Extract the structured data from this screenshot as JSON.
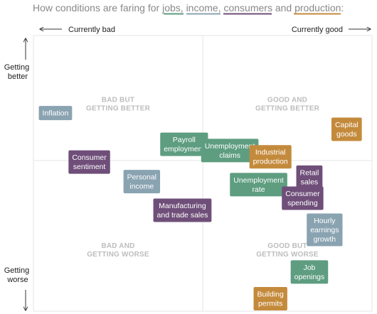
{
  "title": {
    "prefix": "How conditions are faring for ",
    "jobs": "jobs",
    "sep1": ", ",
    "income": "income",
    "sep2": ", ",
    "consumers": "consumers",
    "sep3": " and ",
    "production": "production",
    "suffix": ":"
  },
  "colors": {
    "jobs": "#5e9d80",
    "income": "#8aa3b1",
    "consumers": "#6f4f79",
    "production": "#c48a3c"
  },
  "axes": {
    "left_label": "Currently bad",
    "right_label": "Currently good",
    "top_label_line1": "Getting",
    "top_label_line2": "better",
    "bottom_label_line1": "Getting",
    "bottom_label_line2": "worse"
  },
  "chart_data": {
    "type": "scatter",
    "title": "How conditions are faring for jobs, income, consumers and production:",
    "xlabel": "Currently bad ← → Currently good",
    "ylabel": "Getting worse ← → Getting better",
    "xlim": [
      -1,
      1
    ],
    "ylim": [
      -1,
      1
    ],
    "grid": false,
    "quadrants": [
      {
        "line1": "BAD BUT",
        "line2": "GETTING BETTER",
        "qx": -0.5,
        "qy": 0.47
      },
      {
        "line1": "GOOD AND",
        "line2": "GETTING BETTER",
        "qx": 0.5,
        "qy": 0.47
      },
      {
        "line1": "BAD AND",
        "line2": "GETTING WORSE",
        "qx": -0.5,
        "qy": -0.58
      },
      {
        "line1": "GOOD BUT",
        "line2": "GETTING WORSE",
        "qx": 0.5,
        "qy": -0.58
      }
    ],
    "points": [
      {
        "label": [
          "Inflation"
        ],
        "category": "income",
        "x": -0.87,
        "y": 0.38
      },
      {
        "label": [
          "Capital",
          "goods"
        ],
        "category": "production",
        "x": 0.85,
        "y": 0.25
      },
      {
        "label": [
          "Payroll",
          "employment"
        ],
        "category": "jobs",
        "x": -0.11,
        "y": 0.13
      },
      {
        "label": [
          "Unemployment",
          "claims"
        ],
        "category": "jobs",
        "x": 0.16,
        "y": 0.08
      },
      {
        "label": [
          "Industrial",
          "production"
        ],
        "category": "production",
        "x": 0.4,
        "y": 0.03
      },
      {
        "label": [
          "Consumer",
          "sentiment"
        ],
        "category": "consumers",
        "x": -0.67,
        "y": -0.01
      },
      {
        "label": [
          "Personal",
          "income"
        ],
        "category": "income",
        "x": -0.36,
        "y": -0.14
      },
      {
        "label": [
          "Unemployment",
          "rate"
        ],
        "category": "jobs",
        "x": 0.33,
        "y": -0.16
      },
      {
        "label": [
          "Retail",
          "sales"
        ],
        "category": "consumers",
        "x": 0.63,
        "y": -0.11
      },
      {
        "label": [
          "Consumer",
          "spending"
        ],
        "category": "consumers",
        "x": 0.59,
        "y": -0.25
      },
      {
        "label": [
          "Manufacturing",
          "and trade sales"
        ],
        "category": "consumers",
        "x": -0.12,
        "y": -0.33
      },
      {
        "label": [
          "Hourly",
          "earnings",
          "growth"
        ],
        "category": "income",
        "x": 0.72,
        "y": -0.46
      },
      {
        "label": [
          "Job",
          "openings"
        ],
        "category": "jobs",
        "x": 0.63,
        "y": -0.74
      },
      {
        "label": [
          "Building",
          "permits"
        ],
        "category": "production",
        "x": 0.4,
        "y": -0.99
      }
    ]
  }
}
